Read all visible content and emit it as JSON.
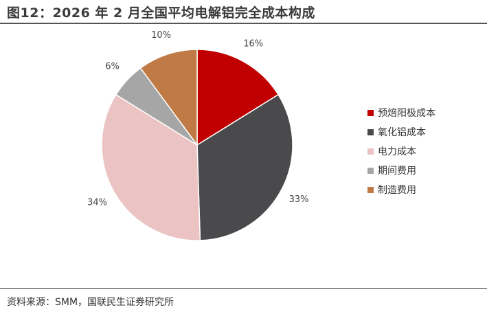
{
  "header": {
    "title": "图12：2026 年 2 月全国平均电解铝完全成本构成"
  },
  "footer": {
    "source": "资料来源：SMM，国联民生证券研究所"
  },
  "chart_data": {
    "type": "pie",
    "title": "",
    "legend_position": "right",
    "slices": [
      {
        "name": "预焙阳极成本",
        "value": 16,
        "label": "16%",
        "color": "#C00000"
      },
      {
        "name": "氧化铝成本",
        "value": 33,
        "label": "33%",
        "color": "#4A4A4C"
      },
      {
        "name": "电力成本",
        "value": 34,
        "label": "34%",
        "color": "#EBC3C3"
      },
      {
        "name": "期间费用",
        "value": 6,
        "label": "6%",
        "color": "#A6A6A6"
      },
      {
        "name": "制造费用",
        "value": 10,
        "label": "10%",
        "color": "#C07A45"
      }
    ]
  }
}
